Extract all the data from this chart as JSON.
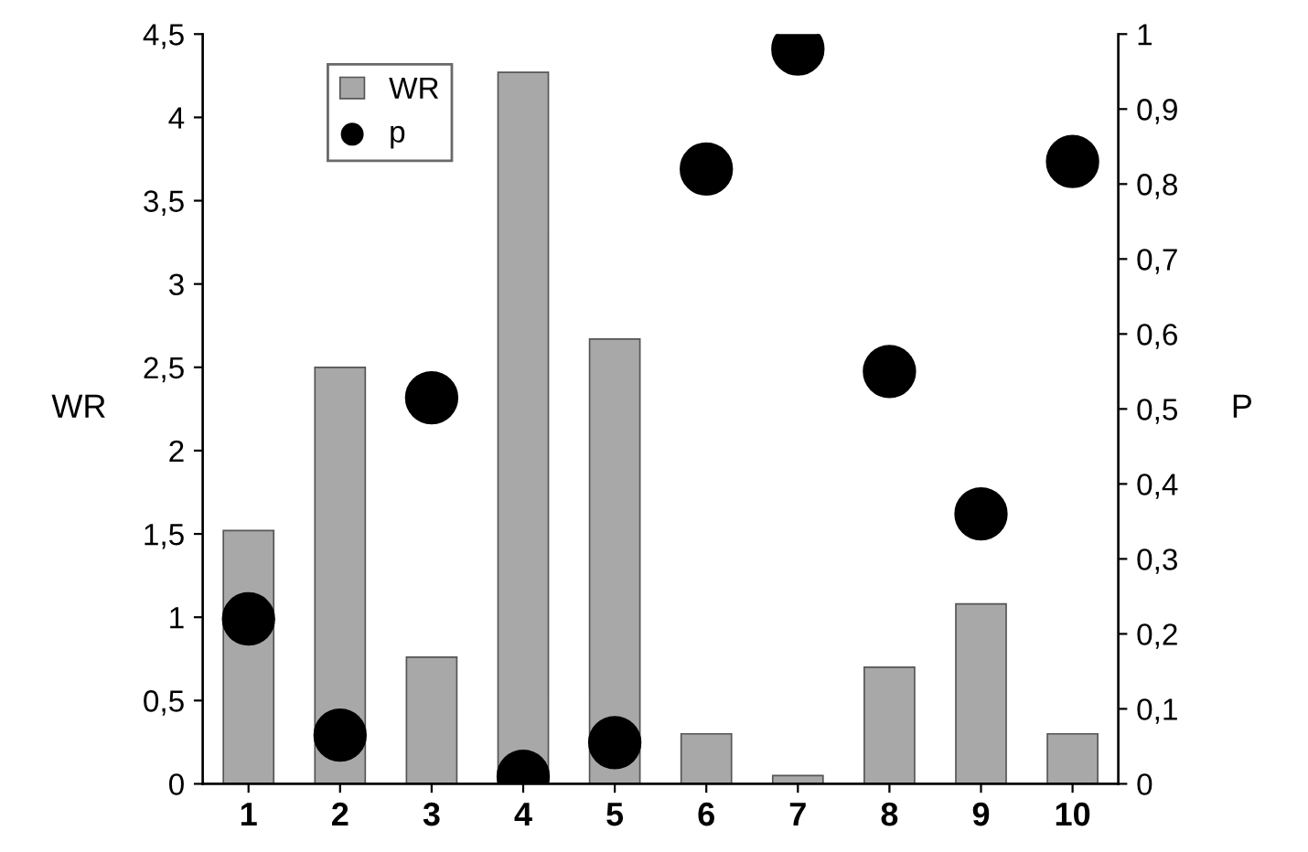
{
  "chart_data": {
    "type": "bar",
    "xlabel": null,
    "ylabel": "WR",
    "y2label": "P",
    "categories": [
      "1",
      "2",
      "3",
      "4",
      "5",
      "6",
      "7",
      "8",
      "9",
      "10"
    ],
    "series": [
      {
        "name": "WR",
        "color": "#a8a8a8",
        "values": [
          1.52,
          2.5,
          0.76,
          4.27,
          2.67,
          0.3,
          0.05,
          0.7,
          1.08,
          0.3
        ]
      },
      {
        "name": "p",
        "type": "scatter",
        "color": "#000000",
        "axis": "y2",
        "marker": "circle",
        "values": [
          0.22,
          0.065,
          0.515,
          0.01,
          0.055,
          0.82,
          0.98,
          0.55,
          0.36,
          0.83
        ]
      }
    ],
    "ylim": [
      0,
      4.5
    ],
    "yticks": [
      0,
      {
        "value": 0.5,
        "label": "0,5"
      },
      1,
      {
        "value": 1.5,
        "label": "1,5"
      },
      2,
      {
        "value": 2.5,
        "label": "2,5"
      },
      3,
      {
        "value": 3.5,
        "label": "3,5"
      },
      4,
      {
        "value": 4.5,
        "label": "4,5"
      }
    ],
    "y2lim": [
      0,
      1
    ],
    "y2ticks": [
      0,
      {
        "value": 0.1,
        "label": "0,1"
      },
      {
        "value": 0.2,
        "label": "0,2"
      },
      {
        "value": 0.3,
        "label": "0,3"
      },
      {
        "value": 0.4,
        "label": "0,4"
      },
      {
        "value": 0.5,
        "label": "0,5"
      },
      {
        "value": 0.6,
        "label": "0,6"
      },
      {
        "value": 0.7,
        "label": "0,7"
      },
      {
        "value": 0.8,
        "label": "0,8"
      },
      {
        "value": 0.9,
        "label": "0,9"
      },
      1
    ],
    "grid": false,
    "legend": "top left"
  }
}
